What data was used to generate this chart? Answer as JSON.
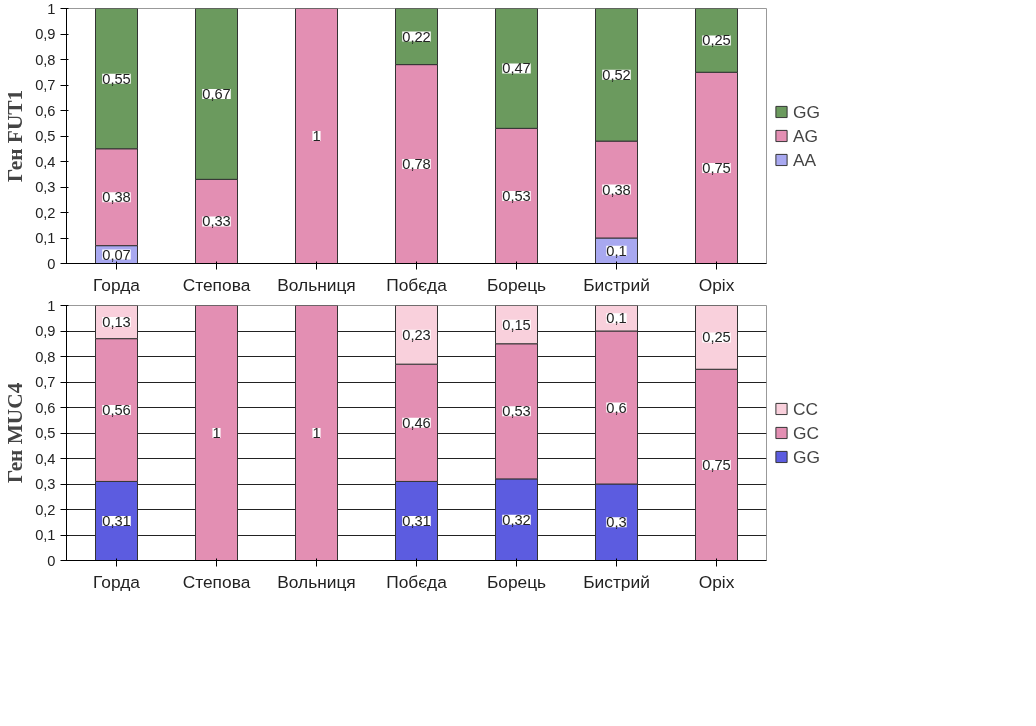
{
  "chart_data": [
    {
      "type": "bar",
      "stacked": true,
      "ylabel": "Ген FUT1",
      "categories": [
        "Горда",
        "Степова",
        "Вольниця",
        "Побєда",
        "Борець",
        "Бистрий",
        "Оріх"
      ],
      "ylim": [
        0,
        1
      ],
      "yticks": [
        0,
        {
          "value": 0.1,
          "label": "0,1"
        },
        {
          "value": 0.2,
          "label": "0,2"
        },
        {
          "value": 0.3,
          "label": "0,3"
        },
        {
          "value": 0.4,
          "label": "0,4"
        },
        {
          "value": 0.5,
          "label": "0,5"
        },
        {
          "value": 0.6,
          "label": "0,6"
        },
        {
          "value": 0.7,
          "label": "0,7"
        },
        {
          "value": 0.8,
          "label": "0,8"
        },
        {
          "value": 0.9,
          "label": "0,9"
        },
        1
      ],
      "grid": false,
      "legend": "right",
      "series": [
        {
          "name": "AA",
          "color": "#a8a8f0",
          "values": [
            0.07,
            null,
            null,
            null,
            null,
            0.1,
            null
          ],
          "value_labels": [
            "0,07",
            null,
            null,
            null,
            null,
            "0,1",
            null
          ]
        },
        {
          "name": "AG",
          "color": "#e38fb3",
          "values": [
            0.38,
            0.33,
            1,
            0.78,
            0.53,
            0.38,
            0.75
          ],
          "value_labels": [
            "0,38",
            "0,33",
            "1",
            "0,78",
            "0,53",
            "0,38",
            "0,75"
          ]
        },
        {
          "name": "GG",
          "color": "#6b9a5e",
          "values": [
            0.55,
            0.67,
            null,
            0.22,
            0.47,
            0.52,
            0.25
          ],
          "value_labels": [
            "0,55",
            "0,67",
            null,
            "0,22",
            "0,47",
            "0,52",
            "0,25"
          ]
        }
      ]
    },
    {
      "type": "bar",
      "stacked": true,
      "ylabel": "Ген MUC4",
      "categories": [
        "Горда",
        "Степова",
        "Вольниця",
        "Побєда",
        "Борець",
        "Бистрий",
        "Оріх"
      ],
      "ylim": [
        0,
        1
      ],
      "yticks": [
        0,
        {
          "value": 0.1,
          "label": "0,1"
        },
        {
          "value": 0.2,
          "label": "0,2"
        },
        {
          "value": 0.3,
          "label": "0,3"
        },
        {
          "value": 0.4,
          "label": "0,4"
        },
        {
          "value": 0.5,
          "label": "0,5"
        },
        {
          "value": 0.6,
          "label": "0,6"
        },
        {
          "value": 0.7,
          "label": "0,7"
        },
        {
          "value": 0.8,
          "label": "0,8"
        },
        {
          "value": 0.9,
          "label": "0,9"
        },
        1
      ],
      "grid": "y",
      "legend": "right",
      "series": [
        {
          "name": "GG",
          "color": "#5c5ce0",
          "values": [
            0.31,
            null,
            null,
            0.31,
            0.32,
            0.3,
            null
          ],
          "value_labels": [
            "0,31",
            null,
            null,
            "0,31",
            "0,32",
            "0,3",
            null
          ]
        },
        {
          "name": "GC",
          "color": "#e38fb3",
          "values": [
            0.56,
            1,
            1,
            0.46,
            0.53,
            0.6,
            0.75
          ],
          "value_labels": [
            "0,56",
            "1",
            "1",
            "0,46",
            "0,53",
            "0,6",
            "0,75"
          ]
        },
        {
          "name": "CC",
          "color": "#f9d0dc",
          "values": [
            0.13,
            null,
            null,
            0.23,
            0.15,
            0.1,
            0.25
          ],
          "value_labels": [
            "0,13",
            null,
            null,
            "0,23",
            "0,15",
            "0,1",
            "0,25"
          ]
        }
      ]
    }
  ]
}
